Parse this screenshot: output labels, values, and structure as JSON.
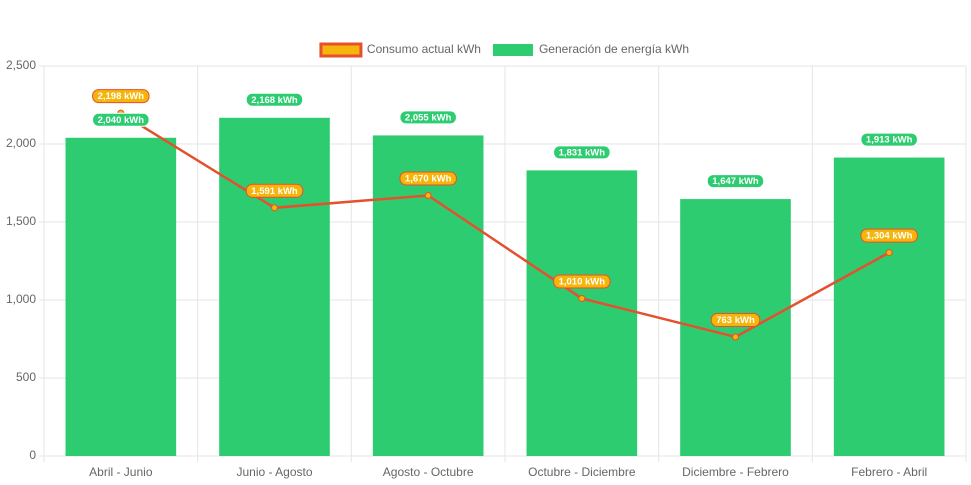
{
  "chart_data": {
    "type": "bar",
    "categories": [
      "Abril - Junio",
      "Junio - Agosto",
      "Agosto - Octubre",
      "Octubre - Diciembre",
      "Diciembre - Febrero",
      "Febrero - Abril"
    ],
    "series": [
      {
        "name": "Consumo actual kWh",
        "type": "line",
        "color": "#e5502e",
        "point_color": "#f5b50a",
        "values": [
          2198,
          1591,
          1670,
          1010,
          763,
          1304
        ],
        "value_labels": [
          "2,198 kWh",
          "1,591 kWh",
          "1,670 kWh",
          "1,010 kWh",
          "763 kWh",
          "1,304 kWh"
        ]
      },
      {
        "name": "Generación de energía kWh",
        "type": "bar",
        "color": "#2ecc71",
        "values": [
          2040,
          2168,
          2055,
          1831,
          1647,
          1913
        ],
        "value_labels": [
          "2,040 kWh",
          "2,168 kWh",
          "2,055 kWh",
          "1,831 kWh",
          "1,647 kWh",
          "1,913 kWh"
        ]
      }
    ],
    "ylim": [
      0,
      2500
    ],
    "yticks": [
      0,
      500,
      {
        "value": 1000,
        "label": "1,000"
      },
      {
        "value": 1500,
        "label": "1,500"
      },
      {
        "value": 2000,
        "label": "2,000"
      },
      {
        "value": 2500,
        "label": "2,500"
      }
    ],
    "grid": true,
    "legend": "top"
  }
}
